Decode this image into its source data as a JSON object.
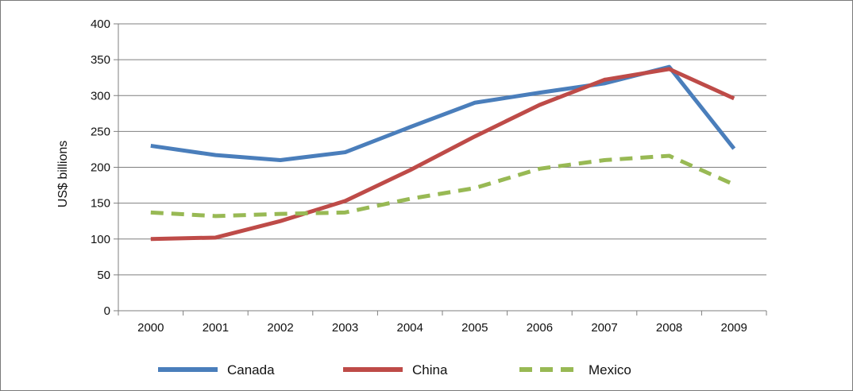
{
  "chart_data": {
    "type": "line",
    "ylabel": "US$ billions",
    "xlabel": "",
    "ylim": [
      0,
      400
    ],
    "yticks": [
      0,
      50,
      100,
      150,
      200,
      250,
      300,
      350,
      400
    ],
    "categories": [
      "2000",
      "2001",
      "2002",
      "2003",
      "2004",
      "2005",
      "2006",
      "2007",
      "2008",
      "2009"
    ],
    "grid": "horizontal",
    "legend_position": "bottom",
    "series": [
      {
        "name": "Canada",
        "color": "#4a7ebb",
        "dash": "solid",
        "values": [
          230,
          217,
          210,
          221,
          256,
          290,
          304,
          317,
          340,
          226
        ]
      },
      {
        "name": "China",
        "color": "#be4b48",
        "dash": "solid",
        "values": [
          100,
          102,
          125,
          153,
          196,
          243,
          287,
          322,
          337,
          296
        ]
      },
      {
        "name": "Mexico",
        "color": "#98b954",
        "dash": "dashed",
        "values": [
          137,
          132,
          135,
          137,
          156,
          171,
          198,
          210,
          216,
          176
        ]
      }
    ]
  }
}
